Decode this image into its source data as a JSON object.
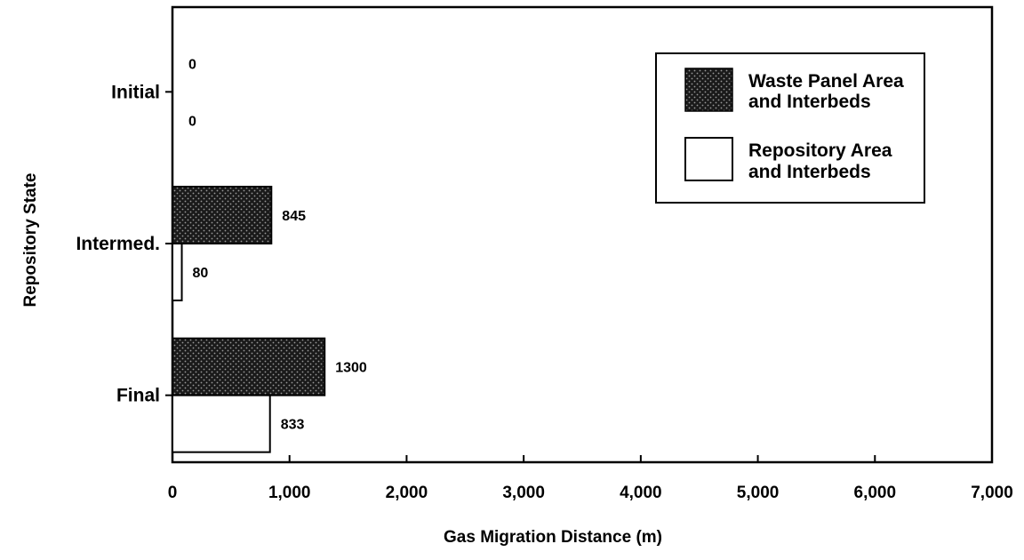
{
  "chart_data": {
    "type": "bar",
    "orientation": "horizontal",
    "categories": [
      "Initial",
      "Intermed.",
      "Final"
    ],
    "series": [
      {
        "name": "Waste Panel Area and Interbeds",
        "values": [
          0,
          845,
          1300
        ],
        "labels": [
          "0",
          "845",
          "1300"
        ],
        "fill": "pattern-dots"
      },
      {
        "name": "Repository Area and Interbeds",
        "values": [
          0,
          80,
          833
        ],
        "labels": [
          "0",
          "80",
          "833"
        ],
        "fill": "#ffffff"
      }
    ],
    "legend_lines": [
      [
        "Waste Panel Area",
        "and Interbeds"
      ],
      [
        "Repository Area",
        "and Interbeds"
      ]
    ],
    "xlabel": "Gas Migration Distance (m)",
    "ylabel": "Repository State",
    "xlim": [
      0,
      7000
    ],
    "xticks": [
      0,
      1000,
      2000,
      3000,
      4000,
      5000,
      6000,
      7000
    ],
    "xtick_labels": [
      "0",
      "1,000",
      "2,000",
      "3,000",
      "4,000",
      "5,000",
      "6,000",
      "7,000"
    ],
    "grid": false,
    "legend_position": "top-right",
    "colors": {
      "bar_dark": "#1a1a1a",
      "bar_dot": "#8a8a8a",
      "bar_light": "#ffffff",
      "stroke": "#000000"
    }
  }
}
